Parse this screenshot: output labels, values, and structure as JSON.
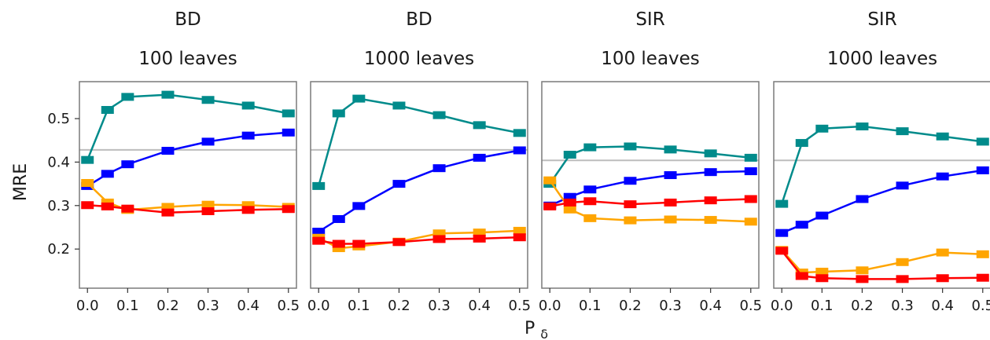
{
  "figure": {
    "ylabel": "MRE",
    "xlabel_main": "P",
    "xlabel_sub": "δ"
  },
  "chart_data": [
    {
      "type": "line",
      "title": "BD",
      "subtitle": "100 leaves",
      "x": [
        0.0,
        0.05,
        0.1,
        0.2,
        0.3,
        0.4,
        0.5
      ],
      "xticks": [
        "0.0",
        "0.1",
        "0.2",
        "0.3",
        "0.4",
        "0.5"
      ],
      "yticks": [
        "0.2",
        "0.3",
        "0.4",
        "0.5"
      ],
      "xlim": [
        -0.02,
        0.52
      ],
      "ylim": [
        0.11,
        0.585
      ],
      "reference_line": 0.428,
      "series": [
        {
          "color": "#008B8B",
          "values": [
            0.405,
            0.52,
            0.55,
            0.555,
            0.543,
            0.53,
            0.512
          ]
        },
        {
          "color": "#0000FF",
          "values": [
            0.345,
            0.373,
            0.395,
            0.426,
            0.447,
            0.461,
            0.468
          ]
        },
        {
          "color": "#FFA500",
          "values": [
            0.352,
            0.307,
            0.29,
            0.297,
            0.302,
            0.301,
            0.297
          ]
        },
        {
          "color": "#FF0000",
          "values": [
            0.301,
            0.298,
            0.293,
            0.284,
            0.287,
            0.29,
            0.292
          ]
        }
      ]
    },
    {
      "type": "line",
      "title": "BD",
      "subtitle": "1000 leaves",
      "x": [
        0.0,
        0.05,
        0.1,
        0.2,
        0.3,
        0.4,
        0.5
      ],
      "xticks": [
        "0.0",
        "0.1",
        "0.2",
        "0.3",
        "0.4",
        "0.5"
      ],
      "yticks": [
        "0.2",
        "0.3",
        "0.4",
        "0.5"
      ],
      "xlim": [
        -0.02,
        0.52
      ],
      "ylim": [
        0.11,
        0.585
      ],
      "reference_line": 0.428,
      "series": [
        {
          "color": "#008B8B",
          "values": [
            0.345,
            0.512,
            0.546,
            0.53,
            0.508,
            0.485,
            0.467
          ]
        },
        {
          "color": "#0000FF",
          "values": [
            0.24,
            0.269,
            0.299,
            0.35,
            0.386,
            0.41,
            0.427
          ]
        },
        {
          "color": "#FFA500",
          "values": [
            0.226,
            0.202,
            0.206,
            0.217,
            0.236,
            0.238,
            0.242
          ]
        },
        {
          "color": "#FF0000",
          "values": [
            0.219,
            0.212,
            0.212,
            0.216,
            0.223,
            0.224,
            0.227
          ]
        }
      ]
    },
    {
      "type": "line",
      "title": "SIR",
      "subtitle": "100 leaves",
      "x": [
        0.0,
        0.05,
        0.1,
        0.2,
        0.3,
        0.4,
        0.5
      ],
      "xticks": [
        "0.0",
        "0.1",
        "0.2",
        "0.3",
        "0.4",
        "0.5"
      ],
      "yticks": [
        "0.2",
        "0.3",
        "0.4",
        "0.5"
      ],
      "xlim": [
        -0.02,
        0.52
      ],
      "ylim": [
        0.11,
        0.585
      ],
      "reference_line": 0.404,
      "series": [
        {
          "color": "#008B8B",
          "values": [
            0.35,
            0.417,
            0.434,
            0.436,
            0.429,
            0.42,
            0.41
          ]
        },
        {
          "color": "#0000FF",
          "values": [
            0.3,
            0.32,
            0.337,
            0.357,
            0.37,
            0.377,
            0.379
          ]
        },
        {
          "color": "#FFA500",
          "values": [
            0.358,
            0.291,
            0.271,
            0.266,
            0.268,
            0.267,
            0.263
          ]
        },
        {
          "color": "#FF0000",
          "values": [
            0.298,
            0.307,
            0.31,
            0.303,
            0.307,
            0.312,
            0.315
          ]
        }
      ]
    },
    {
      "type": "line",
      "title": "SIR",
      "subtitle": "1000 leaves",
      "x": [
        0.0,
        0.05,
        0.1,
        0.2,
        0.3,
        0.4,
        0.5
      ],
      "xticks": [
        "0.0",
        "0.1",
        "0.2",
        "0.3",
        "0.4",
        "0.5"
      ],
      "yticks": [
        "0.2",
        "0.3",
        "0.4",
        "0.5"
      ],
      "xlim": [
        -0.02,
        0.52
      ],
      "ylim": [
        0.11,
        0.585
      ],
      "reference_line": 0.404,
      "series": [
        {
          "color": "#008B8B",
          "values": [
            0.304,
            0.444,
            0.477,
            0.482,
            0.471,
            0.459,
            0.447
          ]
        },
        {
          "color": "#0000FF",
          "values": [
            0.237,
            0.256,
            0.277,
            0.315,
            0.346,
            0.367,
            0.381
          ]
        },
        {
          "color": "#FFA500",
          "values": [
            0.198,
            0.146,
            0.148,
            0.151,
            0.17,
            0.192,
            0.188
          ]
        },
        {
          "color": "#FF0000",
          "values": [
            0.196,
            0.138,
            0.133,
            0.131,
            0.131,
            0.133,
            0.134
          ]
        }
      ]
    }
  ]
}
